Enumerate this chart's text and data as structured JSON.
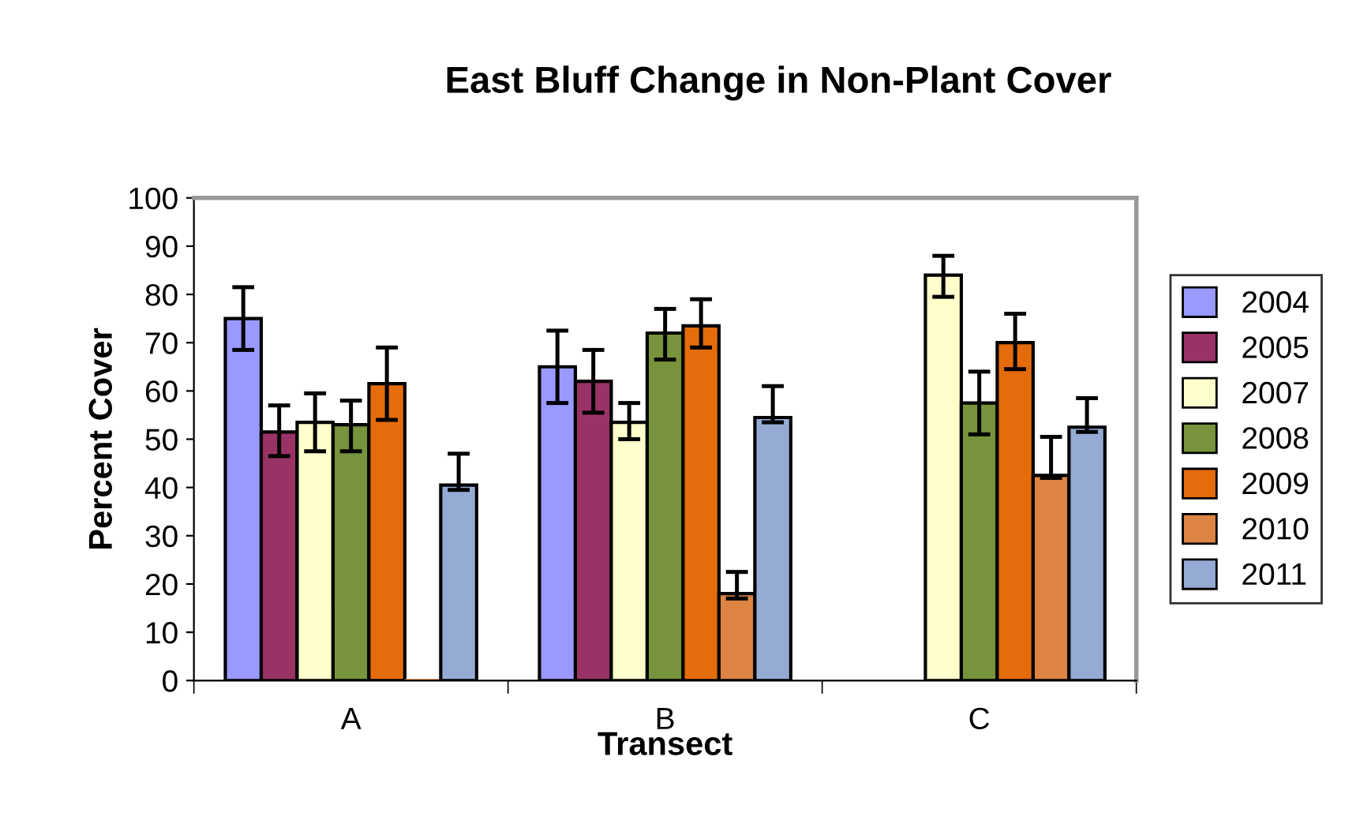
{
  "chart_data": {
    "type": "bar",
    "title": "East Bluff Change in Non-Plant Cover",
    "xlabel": "Transect",
    "ylabel": "Percent Cover",
    "categories": [
      "A",
      "B",
      "C"
    ],
    "series": [
      {
        "name": "2004",
        "color": "#9999ff",
        "values": [
          75,
          65,
          null
        ],
        "errors": [
          [
            68.5,
            81.5
          ],
          [
            57.5,
            72.5
          ],
          null
        ]
      },
      {
        "name": "2005",
        "color": "#993366",
        "values": [
          51.5,
          62,
          null
        ],
        "errors": [
          [
            46.5,
            57
          ],
          [
            55.5,
            68.5
          ],
          null
        ]
      },
      {
        "name": "2007",
        "color": "#ffffcc",
        "values": [
          53.5,
          53.5,
          84
        ],
        "errors": [
          [
            47.5,
            59.5
          ],
          [
            50,
            57.5
          ],
          [
            79.5,
            88
          ]
        ]
      },
      {
        "name": "2008",
        "color": "#77933c",
        "values": [
          53,
          72,
          57.5
        ],
        "errors": [
          [
            47.5,
            58
          ],
          [
            66.5,
            77
          ],
          [
            51,
            64
          ]
        ]
      },
      {
        "name": "2009",
        "color": "#e46c0a",
        "values": [
          61.5,
          73.5,
          70
        ],
        "errors": [
          [
            54,
            69
          ],
          [
            69,
            79
          ],
          [
            64.5,
            76
          ]
        ]
      },
      {
        "name": "2010",
        "color": "#dd8444",
        "values": [
          0,
          18,
          42.5
        ],
        "errors": [
          null,
          [
            17,
            22.5
          ],
          [
            42,
            50.5
          ]
        ]
      },
      {
        "name": "2011",
        "color": "#95abd3",
        "values": [
          40.5,
          54.5,
          52.5
        ],
        "errors": [
          [
            39.5,
            47
          ],
          [
            53.5,
            61
          ],
          [
            51.5,
            58.5
          ]
        ]
      }
    ],
    "ylim": [
      0,
      100
    ],
    "yticks": [
      0,
      10,
      20,
      30,
      40,
      50,
      60,
      70,
      80,
      90,
      100
    ],
    "grid": false,
    "legend": "right"
  }
}
